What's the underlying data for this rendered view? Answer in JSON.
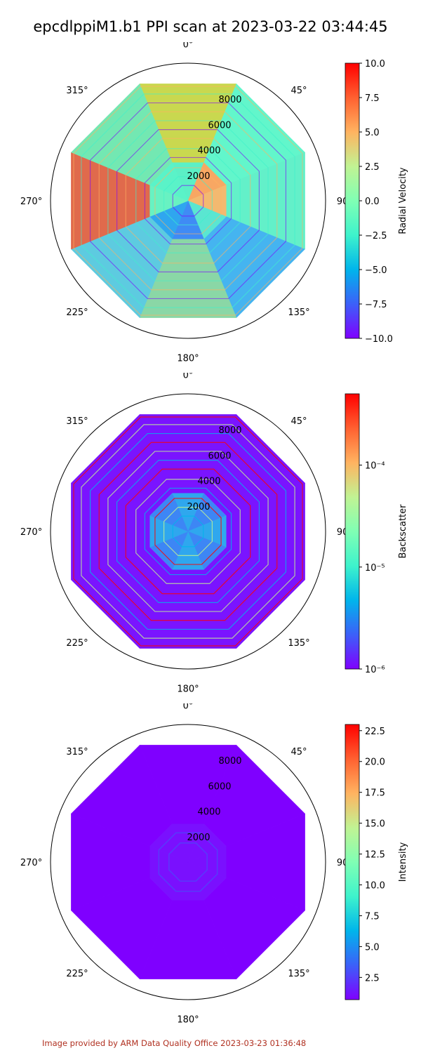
{
  "title": "epcdlppiM1.b1 PPI scan at 2023-03-22 03:44:45",
  "footer": "Image provided by ARM Data Quality Office 2023-03-23 01:36:48",
  "colormap": [
    "#7f00ff",
    "#3c60f9",
    "#00b5eb",
    "#3ef3cc",
    "#80ffb4",
    "#c1f393",
    "#ffb360",
    "#ff6030",
    "#ff0000"
  ],
  "chart_data": [
    {
      "type": "heatmap",
      "projection": "polar",
      "angle_ticks": [
        "0°",
        "45°",
        "90°",
        "135°",
        "180°",
        "225°",
        "270°",
        "315°"
      ],
      "radial_ticks": [
        "2000",
        "4000",
        "6000",
        "8000"
      ],
      "rmax": 10000,
      "colorbar": {
        "label": "Radial Velocity",
        "scale": "linear",
        "range": [
          -10.0,
          10.0
        ],
        "ticks": [
          "10.0",
          "7.5",
          "5.0",
          "2.5",
          "0.0",
          "−2.5",
          "−5.0",
          "−7.5",
          "−10.0"
        ]
      },
      "sector_fills": [
        "#c9d84f",
        "#62f6cb",
        "#63f0c9",
        "#45b4f0",
        "#8ad7a6",
        "#5dcbe0",
        "#e06a4c",
        "#73e8b2"
      ],
      "inner_fills": [
        "#5bf0c6",
        "#f8a763",
        "#f3b970",
        "#5ae6d1",
        "#3f8bf5",
        "#2fa6ef",
        "#68f2c2",
        "#5af3c8"
      ]
    },
    {
      "type": "heatmap",
      "projection": "polar",
      "angle_ticks": [
        "0°",
        "45°",
        "90°",
        "135°",
        "180°",
        "225°",
        "270°",
        "315°"
      ],
      "radial_ticks": [
        "2000",
        "4000",
        "6000",
        "8000"
      ],
      "rmax": 10000,
      "colorbar": {
        "label": "Backscatter",
        "scale": "log",
        "range": [
          1e-06,
          0.0005
        ],
        "ticks": [
          "10⁻⁴",
          "10⁻⁵",
          "10⁻⁶"
        ]
      },
      "sector_fills": [
        "#7a14ff",
        "#7a14ff",
        "#7a14ff",
        "#7a14ff",
        "#7a14ff",
        "#7a14ff",
        "#7a14ff",
        "#7a14ff"
      ],
      "inner_fills": [
        "#2fa7ee",
        "#3d86f5",
        "#2fa7ee",
        "#3d86f5",
        "#2fa7ee",
        "#3d86f5",
        "#2fa7ee",
        "#3d86f5"
      ]
    },
    {
      "type": "heatmap",
      "projection": "polar",
      "angle_ticks": [
        "0°",
        "45°",
        "90°",
        "135°",
        "180°",
        "225°",
        "270°",
        "315°"
      ],
      "radial_ticks": [
        "2000",
        "4000",
        "6000",
        "8000"
      ],
      "rmax": 10000,
      "colorbar": {
        "label": "Intensity",
        "scale": "linear",
        "range": [
          0.7,
          23.0
        ],
        "ticks": [
          "22.5",
          "20.0",
          "17.5",
          "15.0",
          "12.5",
          "10.0",
          "7.5",
          "5.0",
          "2.5"
        ]
      },
      "sector_fills": [
        "#7f00ff",
        "#7f00ff",
        "#7f00ff",
        "#7f00ff",
        "#7f00ff",
        "#7f00ff",
        "#7f00ff",
        "#7f00ff"
      ],
      "inner_fills": [
        "#7a10fe",
        "#7a10fe",
        "#7a10fe",
        "#7a10fe",
        "#7a10fe",
        "#7a10fe",
        "#7a10fe",
        "#7a10fe"
      ]
    }
  ]
}
